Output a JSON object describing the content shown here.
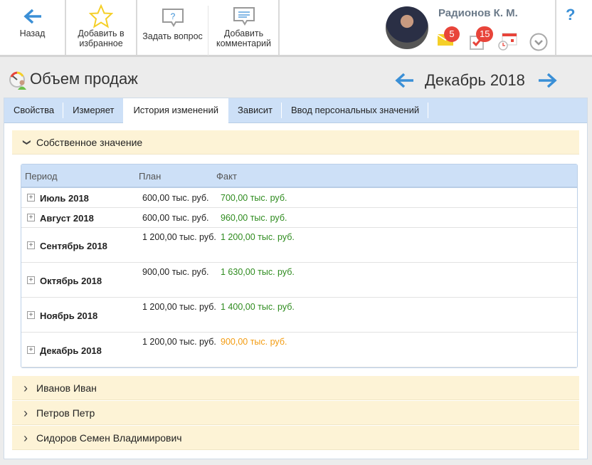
{
  "toolbar": {
    "back": "Назад",
    "favorite": "Добавить в избранное",
    "ask": "Задать вопрос",
    "comment": "Добавить комментарий",
    "help": "?"
  },
  "user": {
    "name": "Радионов К. М.",
    "mail_count": "5",
    "tasks_count": "15"
  },
  "page": {
    "title": "Объем продаж",
    "period": "Декабрь 2018"
  },
  "tabs": [
    "Свойства",
    "Измеряет",
    "История изменений",
    "Зависит",
    "Ввод персональных значений"
  ],
  "active_tab": "История изменений",
  "section": {
    "title": "Собственное значение"
  },
  "table": {
    "headers": {
      "period": "Период",
      "plan": "План",
      "fact": "Факт"
    },
    "rows": [
      {
        "period": "Июль 2018",
        "plan": "600,00 тыс. руб.",
        "fact": "700,00 тыс. руб.",
        "fact_color": "#2e8b1e"
      },
      {
        "period": "Август 2018",
        "plan": "600,00 тыс. руб.",
        "fact": "960,00 тыс. руб.",
        "fact_color": "#2e8b1e"
      },
      {
        "period": "Сентябрь 2018",
        "plan": "1 200,00 тыс. руб.",
        "fact": "1 200,00 тыс. руб.",
        "fact_color": "#2e8b1e"
      },
      {
        "period": "Октябрь 2018",
        "plan": "900,00 тыс. руб.",
        "fact": "1 630,00 тыс. руб.",
        "fact_color": "#2e8b1e"
      },
      {
        "period": "Ноябрь 2018",
        "plan": "1 200,00 тыс. руб.",
        "fact": "1 400,00 тыс. руб.",
        "fact_color": "#2e8b1e"
      },
      {
        "period": "Декабрь 2018",
        "plan": "1 200,00 тыс. руб.",
        "fact": "900,00 тыс. руб.",
        "fact_color": "#f39c12"
      }
    ]
  },
  "people": [
    "Иванов Иван",
    "Петров Петр",
    "Сидоров Семен Владимирович"
  ]
}
